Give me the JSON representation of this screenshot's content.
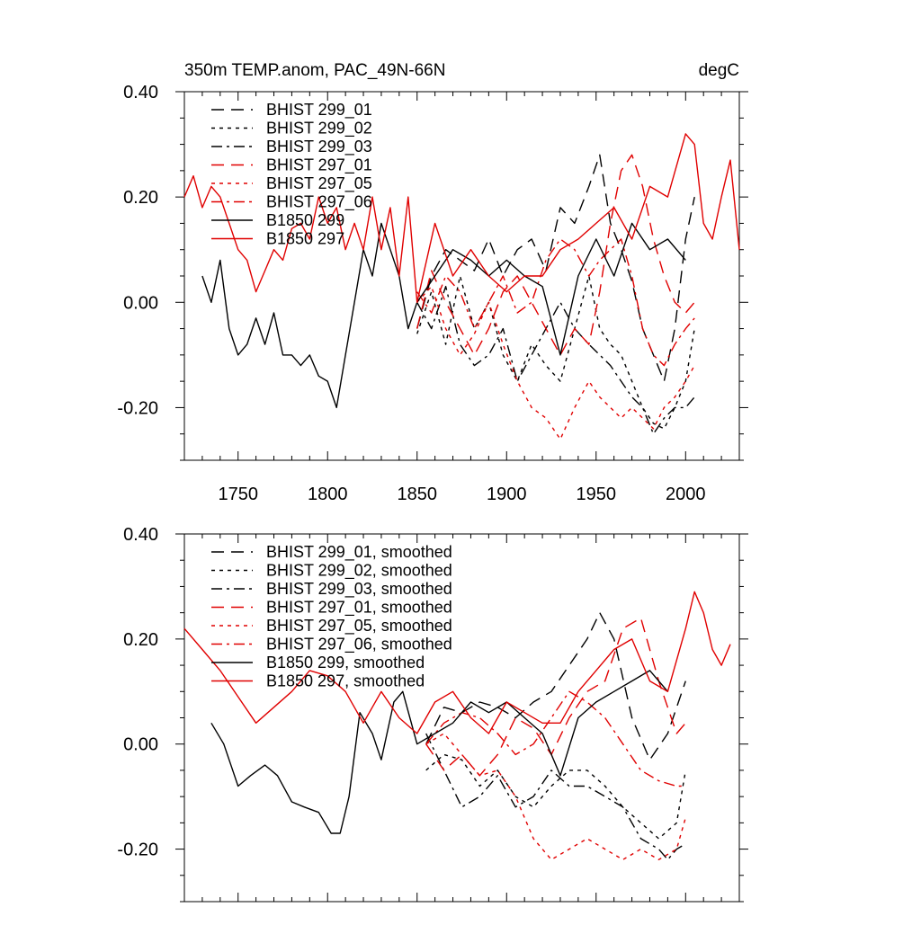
{
  "title": "350m TEMP.anom, PAC_49N-66N",
  "units": "degC",
  "colors": {
    "black": "#000000",
    "red": "#e00000"
  },
  "chart_data": [
    {
      "type": "line",
      "panel": "top",
      "title": "350m TEMP.anom, PAC_49N-66N",
      "units_label": "degC",
      "xlim": [
        1720,
        2030
      ],
      "ylim": [
        -0.3,
        0.4
      ],
      "x_ticks": [
        1750,
        1800,
        1850,
        1900,
        1950,
        2000
      ],
      "x_tick_labels": [
        "1750",
        "1800",
        "1850",
        "1900",
        "1950",
        "2000"
      ],
      "y_ticks": [
        -0.2,
        0.0,
        0.2,
        0.4
      ],
      "y_tick_labels": [
        "-0.20",
        "0.00",
        "0.20",
        "0.40"
      ],
      "legend": [
        "BHIST 299_01",
        "BHIST 299_02",
        "BHIST 299_03",
        "BHIST 297_01",
        "BHIST 297_05",
        "BHIST 297_06",
        "B1850 299",
        "B1850 297"
      ],
      "series": [
        {
          "name": "BHIST 299_01",
          "color": "black",
          "dash": "long",
          "x": [
            1850,
            1858,
            1866,
            1874,
            1882,
            1890,
            1898,
            1906,
            1914,
            1922,
            1930,
            1938,
            1946,
            1952,
            1958,
            1964,
            1970,
            1976,
            1982,
            1988,
            1994,
            2000,
            2005
          ],
          "values": [
            -0.05,
            0.05,
            0.1,
            0.08,
            0.06,
            0.12,
            0.05,
            0.1,
            0.12,
            0.06,
            0.18,
            0.15,
            0.22,
            0.28,
            0.15,
            0.1,
            0.04,
            -0.05,
            -0.1,
            -0.15,
            -0.05,
            0.12,
            0.2
          ]
        },
        {
          "name": "BHIST 299_02",
          "color": "black",
          "dash": "short",
          "x": [
            1850,
            1858,
            1866,
            1874,
            1882,
            1890,
            1898,
            1906,
            1914,
            1922,
            1930,
            1938,
            1946,
            1952,
            1958,
            1964,
            1970,
            1976,
            1982,
            1988,
            1994,
            2000,
            2005
          ],
          "values": [
            -0.06,
            0.02,
            -0.08,
            0.05,
            -0.05,
            0.0,
            -0.1,
            -0.15,
            -0.08,
            -0.12,
            -0.15,
            -0.05,
            0.05,
            -0.05,
            -0.08,
            -0.1,
            -0.15,
            -0.2,
            -0.23,
            -0.24,
            -0.2,
            -0.15,
            -0.05
          ]
        },
        {
          "name": "BHIST 299_03",
          "color": "black",
          "dash": "dashdot",
          "x": [
            1850,
            1858,
            1866,
            1874,
            1882,
            1890,
            1898,
            1906,
            1914,
            1922,
            1930,
            1938,
            1946,
            1952,
            1958,
            1964,
            1970,
            1976,
            1982,
            1988,
            1994,
            2000,
            2005
          ],
          "values": [
            0.0,
            -0.05,
            0.03,
            -0.08,
            -0.12,
            -0.1,
            -0.05,
            -0.15,
            -0.1,
            -0.05,
            0.0,
            -0.05,
            -0.08,
            -0.1,
            -0.12,
            -0.15,
            -0.18,
            -0.2,
            -0.25,
            -0.22,
            -0.2,
            -0.2,
            -0.18
          ]
        },
        {
          "name": "BHIST 297_01",
          "color": "red",
          "dash": "long",
          "x": [
            1850,
            1858,
            1866,
            1874,
            1882,
            1890,
            1898,
            1906,
            1914,
            1922,
            1930,
            1938,
            1946,
            1952,
            1958,
            1964,
            1970,
            1976,
            1982,
            1988,
            1994,
            2000,
            2005
          ],
          "values": [
            -0.05,
            0.06,
            0.0,
            -0.05,
            -0.1,
            -0.05,
            0.02,
            0.05,
            0.0,
            -0.05,
            -0.1,
            -0.05,
            -0.08,
            0.02,
            0.15,
            0.25,
            0.28,
            0.22,
            0.12,
            0.05,
            0.0,
            -0.02,
            0.0
          ]
        },
        {
          "name": "BHIST 297_05",
          "color": "red",
          "dash": "short",
          "x": [
            1850,
            1858,
            1866,
            1874,
            1882,
            1890,
            1898,
            1906,
            1914,
            1922,
            1930,
            1938,
            1946,
            1952,
            1958,
            1964,
            1970,
            1976,
            1982,
            1988,
            1994,
            2000,
            2005
          ],
          "values": [
            0.0,
            0.03,
            -0.05,
            -0.1,
            -0.06,
            0.0,
            -0.08,
            -0.15,
            -0.2,
            -0.22,
            -0.26,
            -0.2,
            -0.15,
            -0.18,
            -0.2,
            -0.22,
            -0.2,
            -0.22,
            -0.24,
            -0.2,
            -0.18,
            -0.15,
            -0.12
          ]
        },
        {
          "name": "BHIST 297_06",
          "color": "red",
          "dash": "dashdot",
          "x": [
            1850,
            1858,
            1866,
            1874,
            1882,
            1890,
            1898,
            1906,
            1914,
            1922,
            1930,
            1938,
            1946,
            1952,
            1958,
            1964,
            1970,
            1976,
            1982,
            1988,
            1994,
            2000,
            2005
          ],
          "values": [
            0.02,
            -0.02,
            0.05,
            0.02,
            -0.05,
            0.0,
            0.05,
            -0.02,
            0.0,
            0.08,
            0.12,
            0.1,
            0.05,
            0.08,
            0.1,
            0.12,
            0.05,
            -0.05,
            -0.1,
            -0.12,
            -0.08,
            -0.05,
            -0.03
          ]
        },
        {
          "name": "B1850 299",
          "color": "black",
          "dash": "solid",
          "x": [
            1730,
            1735,
            1740,
            1745,
            1750,
            1755,
            1760,
            1765,
            1770,
            1775,
            1780,
            1785,
            1790,
            1795,
            1800,
            1805,
            1810,
            1815,
            1820,
            1825,
            1830,
            1835,
            1840,
            1845,
            1850,
            1860,
            1870,
            1880,
            1890,
            1900,
            1910,
            1920,
            1930,
            1940,
            1950,
            1960,
            1970,
            1980,
            1990,
            2000
          ],
          "values": [
            0.05,
            0.0,
            0.08,
            -0.05,
            -0.1,
            -0.08,
            -0.03,
            -0.08,
            -0.02,
            -0.1,
            -0.1,
            -0.12,
            -0.1,
            -0.14,
            -0.15,
            -0.2,
            -0.1,
            0.0,
            0.1,
            0.05,
            0.15,
            0.1,
            0.05,
            -0.05,
            0.0,
            0.05,
            0.1,
            0.08,
            0.05,
            0.08,
            0.05,
            0.03,
            -0.1,
            0.05,
            0.12,
            0.05,
            0.15,
            0.1,
            0.12,
            0.08
          ]
        },
        {
          "name": "B1850 297",
          "color": "red",
          "dash": "solid",
          "x": [
            1720,
            1725,
            1730,
            1735,
            1740,
            1745,
            1750,
            1755,
            1760,
            1765,
            1770,
            1775,
            1780,
            1785,
            1790,
            1795,
            1800,
            1805,
            1810,
            1815,
            1820,
            1825,
            1830,
            1835,
            1840,
            1845,
            1850,
            1860,
            1870,
            1880,
            1890,
            1900,
            1910,
            1920,
            1930,
            1940,
            1950,
            1960,
            1970,
            1980,
            1990,
            2000,
            2005,
            2010,
            2015,
            2020,
            2025,
            2030
          ],
          "values": [
            0.2,
            0.24,
            0.18,
            0.22,
            0.2,
            0.15,
            0.1,
            0.08,
            0.02,
            0.06,
            0.1,
            0.08,
            0.14,
            0.15,
            0.12,
            0.2,
            0.15,
            0.18,
            0.1,
            0.15,
            0.1,
            0.2,
            0.1,
            0.18,
            0.05,
            0.2,
            0.0,
            0.15,
            0.05,
            0.1,
            0.05,
            0.02,
            0.05,
            0.05,
            0.1,
            0.12,
            0.15,
            0.18,
            0.12,
            0.22,
            0.2,
            0.32,
            0.3,
            0.15,
            0.12,
            0.2,
            0.27,
            0.1
          ]
        }
      ]
    },
    {
      "type": "line",
      "panel": "bottom",
      "xlim": [
        1720,
        2030
      ],
      "ylim": [
        -0.3,
        0.4
      ],
      "x_ticks": [
        1750,
        1800,
        1850,
        1900,
        1950,
        2000
      ],
      "y_ticks": [
        -0.2,
        0.0,
        0.2,
        0.4
      ],
      "y_tick_labels": [
        "-0.20",
        "0.00",
        "0.20",
        "0.40"
      ],
      "legend": [
        "BHIST 299_01, smoothed",
        "BHIST 299_02, smoothed",
        "BHIST 299_03, smoothed",
        "BHIST 297_01, smoothed",
        "BHIST 297_05, smoothed",
        "BHIST 297_06, smoothed",
        "B1850 299, smoothed",
        "B1850 297, smoothed"
      ],
      "series": [
        {
          "name": "BHIST 299_01, smoothed",
          "color": "black",
          "dash": "long",
          "x": [
            1855,
            1865,
            1875,
            1885,
            1895,
            1905,
            1915,
            1925,
            1935,
            1945,
            1952,
            1960,
            1970,
            1980,
            1990,
            2000
          ],
          "values": [
            0.0,
            0.07,
            0.06,
            0.08,
            0.07,
            0.05,
            0.08,
            0.1,
            0.15,
            0.2,
            0.25,
            0.2,
            0.05,
            -0.03,
            0.02,
            0.12
          ]
        },
        {
          "name": "BHIST 299_02, smoothed",
          "color": "black",
          "dash": "short",
          "x": [
            1855,
            1865,
            1875,
            1885,
            1895,
            1905,
            1915,
            1925,
            1935,
            1945,
            1955,
            1965,
            1975,
            1985,
            1995,
            2000
          ],
          "values": [
            -0.05,
            -0.02,
            -0.03,
            -0.08,
            -0.05,
            -0.1,
            -0.12,
            -0.08,
            -0.05,
            -0.05,
            -0.08,
            -0.12,
            -0.15,
            -0.18,
            -0.15,
            -0.05
          ]
        },
        {
          "name": "BHIST 299_03, smoothed",
          "color": "black",
          "dash": "dashdot",
          "x": [
            1855,
            1865,
            1875,
            1885,
            1895,
            1905,
            1915,
            1925,
            1935,
            1945,
            1955,
            1965,
            1975,
            1985,
            1990,
            1995,
            2000
          ],
          "values": [
            0.02,
            -0.05,
            -0.12,
            -0.1,
            -0.06,
            -0.12,
            -0.1,
            -0.05,
            -0.08,
            -0.08,
            -0.1,
            -0.12,
            -0.18,
            -0.2,
            -0.22,
            -0.2,
            -0.19
          ]
        },
        {
          "name": "BHIST 297_01, smoothed",
          "color": "red",
          "dash": "long",
          "x": [
            1855,
            1865,
            1875,
            1885,
            1895,
            1905,
            1915,
            1925,
            1935,
            1945,
            1955,
            1965,
            1975,
            1985,
            1995,
            2000
          ],
          "values": [
            0.0,
            -0.05,
            -0.02,
            -0.06,
            -0.02,
            0.05,
            0.03,
            -0.02,
            0.05,
            0.1,
            0.12,
            0.22,
            0.24,
            0.12,
            0.02,
            0.04
          ]
        },
        {
          "name": "BHIST 297_05, smoothed",
          "color": "red",
          "dash": "short",
          "x": [
            1855,
            1865,
            1875,
            1885,
            1895,
            1905,
            1915,
            1925,
            1935,
            1945,
            1955,
            1965,
            1975,
            1985,
            1995,
            2000
          ],
          "values": [
            0.0,
            0.02,
            -0.02,
            -0.06,
            -0.05,
            -0.1,
            -0.18,
            -0.22,
            -0.2,
            -0.18,
            -0.2,
            -0.22,
            -0.2,
            -0.22,
            -0.2,
            -0.14
          ]
        },
        {
          "name": "BHIST 297_06, smoothed",
          "color": "red",
          "dash": "dashdot",
          "x": [
            1855,
            1865,
            1875,
            1885,
            1895,
            1905,
            1915,
            1925,
            1935,
            1945,
            1955,
            1965,
            1975,
            1985,
            1995,
            2000
          ],
          "values": [
            0.0,
            0.04,
            0.06,
            0.05,
            0.02,
            -0.02,
            0.0,
            0.05,
            0.1,
            0.08,
            0.05,
            0.0,
            -0.05,
            -0.07,
            -0.08,
            -0.08
          ]
        },
        {
          "name": "B1850 299, smoothed",
          "color": "black",
          "dash": "solid",
          "x": [
            1735,
            1742,
            1750,
            1757,
            1765,
            1772,
            1780,
            1787,
            1795,
            1802,
            1807,
            1812,
            1818,
            1825,
            1830,
            1837,
            1842,
            1850,
            1860,
            1870,
            1880,
            1890,
            1900,
            1910,
            1920,
            1930,
            1940,
            1950,
            1960,
            1970,
            1980,
            1990
          ],
          "values": [
            0.04,
            0.0,
            -0.08,
            -0.06,
            -0.04,
            -0.06,
            -0.11,
            -0.12,
            -0.13,
            -0.17,
            -0.17,
            -0.1,
            0.06,
            0.02,
            -0.03,
            0.08,
            0.1,
            0.0,
            0.02,
            0.04,
            0.08,
            0.06,
            0.08,
            0.05,
            0.02,
            -0.06,
            0.05,
            0.08,
            0.1,
            0.12,
            0.14,
            0.1
          ]
        },
        {
          "name": "B1850 297, smoothed",
          "color": "red",
          "dash": "solid",
          "x": [
            1720,
            1730,
            1740,
            1750,
            1760,
            1770,
            1780,
            1790,
            1800,
            1810,
            1820,
            1830,
            1840,
            1850,
            1860,
            1870,
            1880,
            1890,
            1900,
            1910,
            1920,
            1930,
            1940,
            1950,
            1960,
            1970,
            1980,
            1990,
            2000,
            2005,
            2010,
            2015,
            2020,
            2025
          ],
          "values": [
            0.22,
            0.18,
            0.14,
            0.09,
            0.04,
            0.07,
            0.1,
            0.14,
            0.13,
            0.1,
            0.04,
            0.1,
            0.05,
            0.02,
            0.08,
            0.1,
            0.05,
            0.02,
            0.08,
            0.06,
            0.04,
            0.04,
            0.1,
            0.14,
            0.18,
            0.2,
            0.12,
            0.1,
            0.22,
            0.29,
            0.25,
            0.18,
            0.15,
            0.19
          ]
        }
      ]
    }
  ]
}
